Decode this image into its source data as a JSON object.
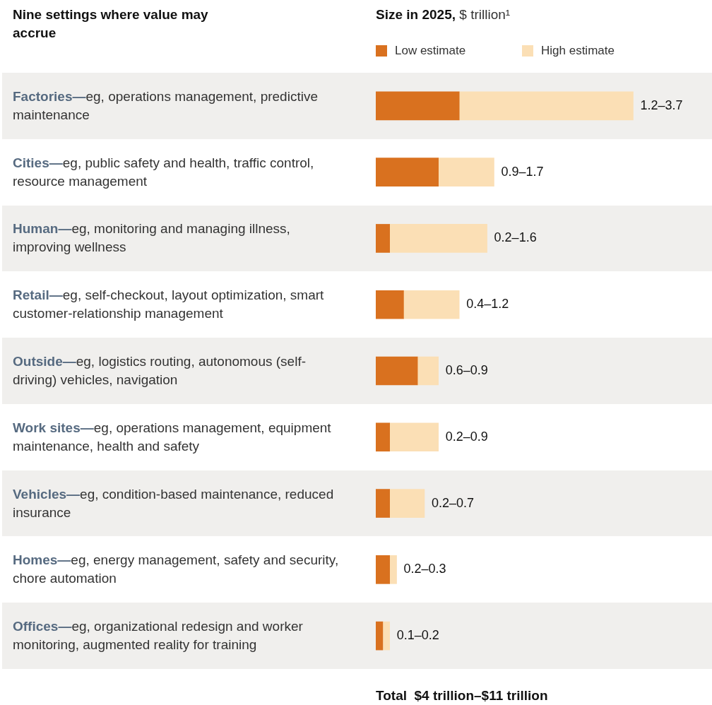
{
  "chart_data": {
    "type": "bar",
    "orientation": "horizontal",
    "title": "Size in 2025, $ trillion¹",
    "ylabel": "Nine settings where value may accrue",
    "categories": [
      "Factories—eg, operations management, predictive maintenance",
      "Cities—eg, public safety and health, traffic control, resource management",
      "Human—eg, monitoring and managing illness, improving wellness",
      "Retail—eg, self-checkout, layout optimization, smart customer-relationship management",
      "Outside—eg, logistics routing, autonomous (self-driving) vehicles, navigation",
      "Work sites—eg, operations management, equipment maintenance, health and safety",
      "Vehicles—eg, condition-based maintenance, reduced insurance",
      "Homes—eg, energy management, safety and security, chore automation",
      "Offices—eg, organizational redesign and worker monitoring, augmented reality for training"
    ],
    "series": [
      {
        "name": "Low estimate",
        "color": "#d9711f",
        "values": [
          1.2,
          0.9,
          0.2,
          0.4,
          0.6,
          0.2,
          0.2,
          0.2,
          0.1
        ]
      },
      {
        "name": "High estimate",
        "color": "#fbdfb5",
        "values": [
          2.5,
          0.8,
          1.4,
          0.8,
          0.3,
          0.7,
          0.5,
          0.1,
          0.1
        ],
        "value_labels": [
          "1.2–3.7",
          "0.9–1.7",
          "0.2–1.6",
          "0.4–1.2",
          "0.6–0.9",
          "0.2–0.9",
          "0.2–0.7",
          "0.2–0.3",
          "0.1–0.2"
        ]
      }
    ],
    "stacked": true,
    "tick_labels": "y",
    "legend": "top",
    "annotations": [
      "Total  $4 trillion–$11 trillion"
    ]
  }
}
